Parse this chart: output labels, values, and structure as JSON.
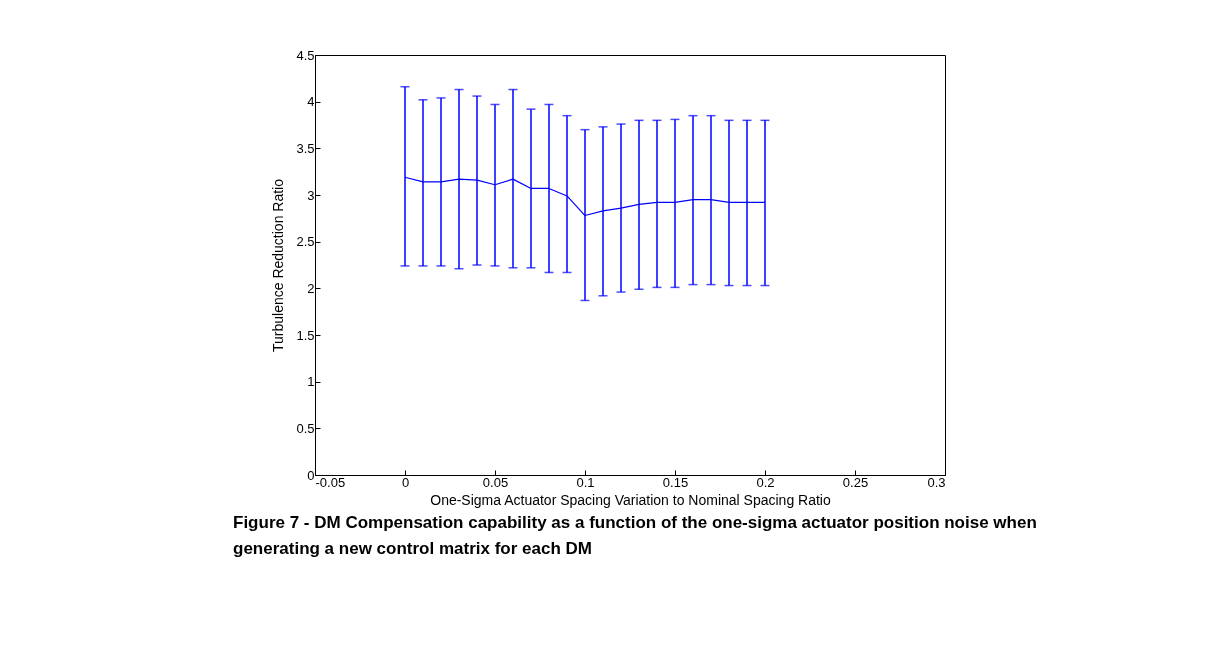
{
  "chart_data": {
    "type": "line",
    "title": "Figure 7 - DM Compensation capability as a function of the one-sigma actuator position noise when generating a new control matrix for each DM",
    "xlabel": "One-Sigma Actuator Spacing Variation to Nominal Spacing Ratio",
    "ylabel": "Turbulence Reduction Ratio",
    "x": [
      0,
      0.01,
      0.02,
      0.03,
      0.04,
      0.05,
      0.06,
      0.07,
      0.08,
      0.09,
      0.1,
      0.11,
      0.12,
      0.13,
      0.14,
      0.15,
      0.16,
      0.17,
      0.18,
      0.19,
      0.2
    ],
    "series": [
      {
        "color": "#0000ff",
        "values": [
          3.19,
          3.14,
          3.14,
          3.17,
          3.16,
          3.11,
          3.17,
          3.07,
          3.07,
          2.99,
          2.78,
          2.83,
          2.86,
          2.9,
          2.92,
          2.92,
          2.95,
          2.95,
          2.92,
          2.92,
          2.92
        ],
        "errors": [
          [
            2.24,
            4.16
          ],
          [
            2.24,
            4.02
          ],
          [
            2.24,
            4.04
          ],
          [
            2.21,
            4.13
          ],
          [
            2.25,
            4.06
          ],
          [
            2.24,
            3.97
          ],
          [
            2.22,
            4.13
          ],
          [
            2.22,
            3.92
          ],
          [
            2.17,
            3.97
          ],
          [
            2.17,
            3.85
          ],
          [
            1.87,
            3.7
          ],
          [
            1.92,
            3.73
          ],
          [
            1.96,
            3.76
          ],
          [
            1.99,
            3.8
          ],
          [
            2.01,
            3.8
          ],
          [
            2.01,
            3.81
          ],
          [
            2.04,
            3.85
          ],
          [
            2.04,
            3.85
          ],
          [
            2.03,
            3.8
          ],
          [
            2.03,
            3.8
          ],
          [
            2.03,
            3.8
          ]
        ]
      }
    ],
    "xlim": [
      -0.05,
      0.3
    ],
    "xticks": [
      -0.05,
      0,
      0.05,
      0.1,
      0.15,
      0.2,
      0.25,
      0.3
    ],
    "ylim": [
      0,
      4.5
    ],
    "yticks": [
      0,
      0.5,
      1,
      1.5,
      2,
      2.5,
      3,
      3.5,
      4,
      4.5
    ],
    "grid": false,
    "marker": "none",
    "line_style": "solid"
  }
}
